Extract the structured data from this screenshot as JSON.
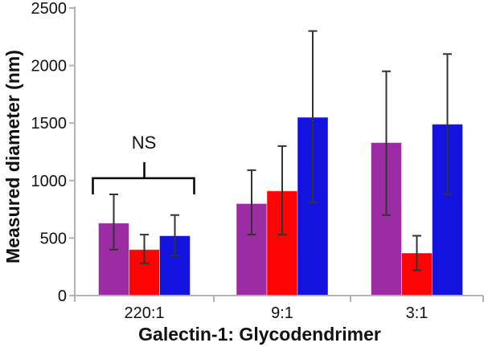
{
  "chart_data": {
    "type": "bar",
    "title": "",
    "xlabel": "Galectin-1: Glycodendrimer",
    "ylabel": "Measured diameter (nm)",
    "categories": [
      "220:1",
      "9:1",
      "3:1"
    ],
    "series": [
      {
        "name": "purple-series",
        "color": "#9B2CA4",
        "values": [
          630,
          800,
          1330
        ],
        "error_low": [
          400,
          530,
          700
        ],
        "error_high": [
          880,
          1090,
          1950
        ]
      },
      {
        "name": "red-series",
        "color": "#FC0404",
        "values": [
          400,
          910,
          370
        ],
        "error_low": [
          280,
          530,
          220
        ],
        "error_high": [
          530,
          1300,
          520
        ]
      },
      {
        "name": "blue-series",
        "color": "#1312DF",
        "values": [
          520,
          1550,
          1490
        ],
        "error_low": [
          350,
          810,
          880
        ],
        "error_high": [
          700,
          2300,
          2100
        ]
      }
    ],
    "ylim": [
      0,
      2500
    ],
    "yticks": [
      0,
      500,
      1000,
      1500,
      2000,
      2500
    ],
    "grid": false,
    "legend": "none",
    "annotation": {
      "text": "NS",
      "category_index": 0,
      "bracket_value": 1020,
      "leg_value": 880,
      "stem_value": 1160
    },
    "colors": {
      "axis": "#B3B3B3",
      "error_bar": "#333333",
      "text": "#111111",
      "annotation_line": "#000000"
    }
  }
}
